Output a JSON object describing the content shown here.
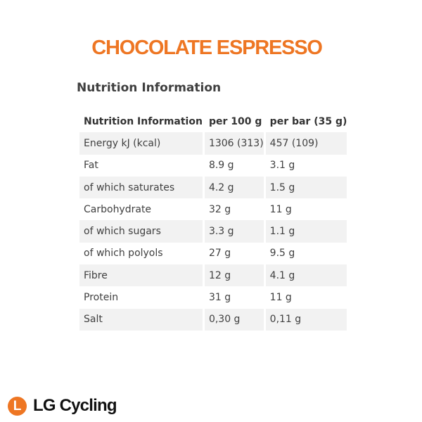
{
  "product": {
    "title": "CHOCOLATE ESPRESSO"
  },
  "nutrition": {
    "heading": "Nutrition Information",
    "columns": [
      "Nutrition Information",
      "per 100 g",
      "per bar (35 g)"
    ],
    "rows": [
      [
        "Energy kJ (kcal)",
        "1306 (313)",
        "457 (109)"
      ],
      [
        "Fat",
        "8.9 g",
        "3.1 g"
      ],
      [
        "of which saturates",
        "4.2 g",
        "1.5 g"
      ],
      [
        "Carbohydrate",
        "32 g",
        "11 g"
      ],
      [
        "of which sugars",
        "3.3 g",
        "1.1 g"
      ],
      [
        "of which polyols",
        "27 g",
        "9.5 g"
      ],
      [
        "Fibre",
        "12 g",
        "4.1 g"
      ],
      [
        "Protein",
        "31 g",
        "11 g"
      ],
      [
        "Salt",
        "0,30 g",
        "0,11 g"
      ]
    ]
  },
  "brand": {
    "badge_letter": "L",
    "name": "LG Cycling"
  },
  "colors": {
    "accent": "#ee7623",
    "text": "#3f3f3f",
    "row_stripe": "#f2f2f2"
  }
}
